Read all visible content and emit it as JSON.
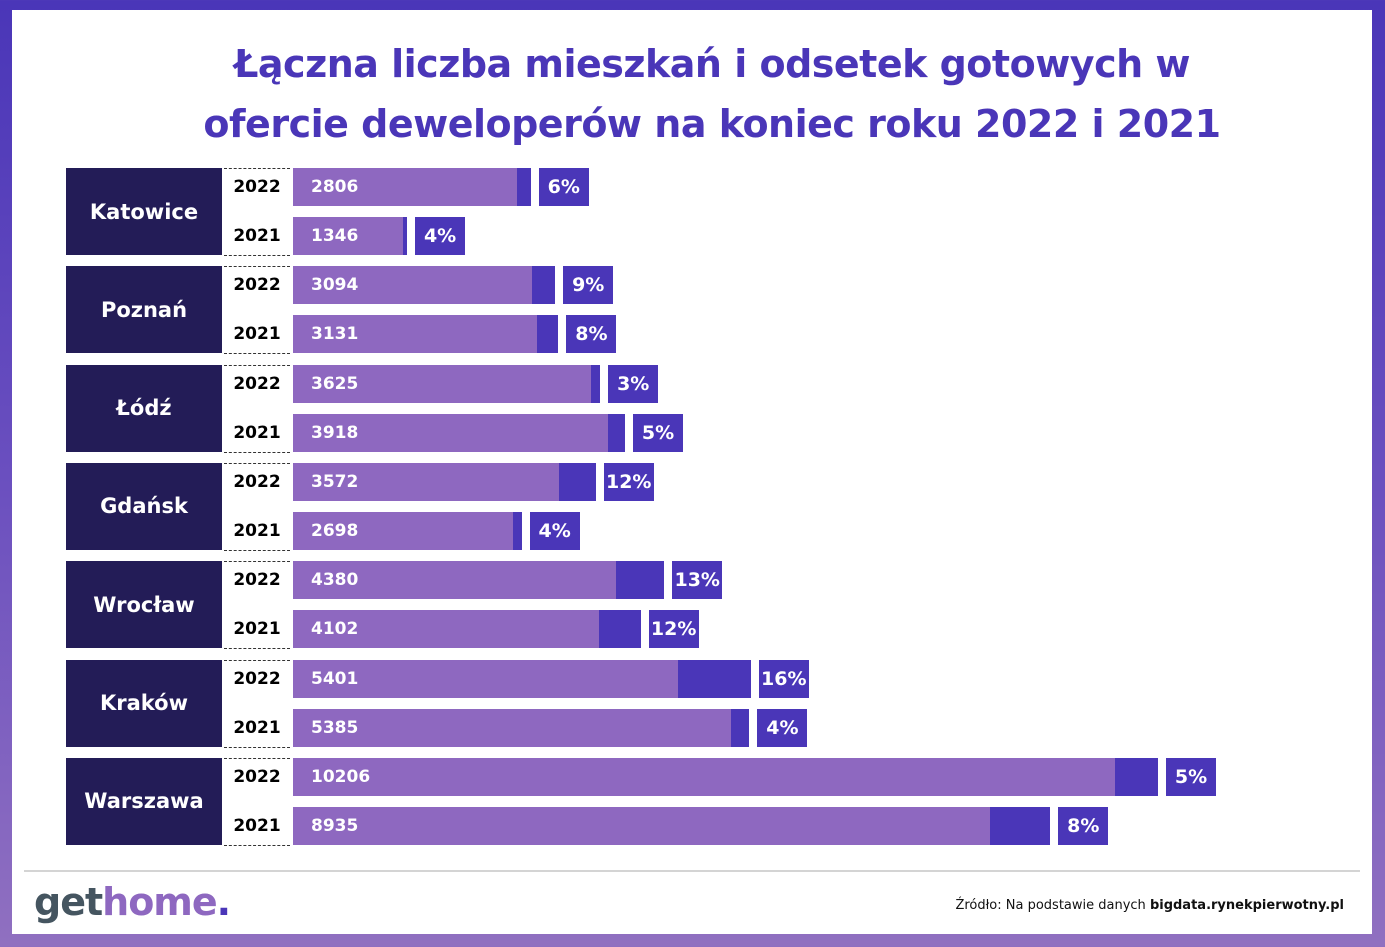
{
  "chart_data": {
    "type": "bar",
    "title": "Łączna liczba mieszkań i odsetek gotowych w ofercie deweloperów na koniec roku 2022 i 2021",
    "title_lines": [
      "Łączna liczba mieszkań i odsetek gotowych w",
      "ofercie deweloperów na koniec roku 2022 i 2021"
    ],
    "orientation": "horizontal",
    "xlim": [
      0,
      10206
    ],
    "series_names": [
      "Łączna liczba mieszkań",
      "Odsetek gotowych"
    ],
    "cities": [
      {
        "name": "Katowice",
        "rows": [
          {
            "year": "2022",
            "total": 2806,
            "ready_pct": 6
          },
          {
            "year": "2021",
            "total": 1346,
            "ready_pct": 4
          }
        ]
      },
      {
        "name": "Poznań",
        "rows": [
          {
            "year": "2022",
            "total": 3094,
            "ready_pct": 9
          },
          {
            "year": "2021",
            "total": 3131,
            "ready_pct": 8
          }
        ]
      },
      {
        "name": "Łódź",
        "rows": [
          {
            "year": "2022",
            "total": 3625,
            "ready_pct": 3
          },
          {
            "year": "2021",
            "total": 3918,
            "ready_pct": 5
          }
        ]
      },
      {
        "name": "Gdańsk",
        "rows": [
          {
            "year": "2022",
            "total": 3572,
            "ready_pct": 12
          },
          {
            "year": "2021",
            "total": 2698,
            "ready_pct": 4
          }
        ]
      },
      {
        "name": "Wrocław",
        "rows": [
          {
            "year": "2022",
            "total": 4380,
            "ready_pct": 13
          },
          {
            "year": "2021",
            "total": 4102,
            "ready_pct": 12
          }
        ]
      },
      {
        "name": "Kraków",
        "rows": [
          {
            "year": "2022",
            "total": 5401,
            "ready_pct": 16
          },
          {
            "year": "2021",
            "total": 5385,
            "ready_pct": 4
          }
        ]
      },
      {
        "name": "Warszawa",
        "rows": [
          {
            "year": "2022",
            "total": 10206,
            "ready_pct": 5
          },
          {
            "year": "2021",
            "total": 8935,
            "ready_pct": 8
          }
        ]
      }
    ],
    "colors": {
      "total": "#8e68c0",
      "ready": "#4a36b8",
      "city": "#231c57"
    }
  },
  "footer": {
    "logo": {
      "part1": "get",
      "part2": "home",
      "part3": "."
    },
    "source_prefix": "Źródło: Na podstawie danych ",
    "source_bold": "bigdata.rynekpierwotny.pl"
  }
}
